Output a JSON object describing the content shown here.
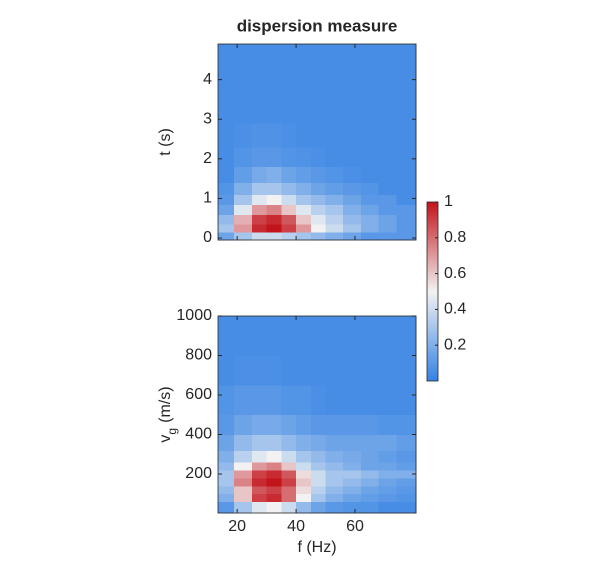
{
  "chart_data": [
    {
      "type": "heatmap",
      "title": "dispersion measure",
      "ylabel": {
        "text": "t (s)"
      },
      "xlim": [
        13.5,
        80.7
      ],
      "ylim": [
        -0.05,
        4.9
      ],
      "xticks": [
        20,
        40,
        60
      ],
      "yticks": [
        0,
        1,
        2,
        3,
        4
      ],
      "show_xtick_labels": false,
      "x_edges": [
        13.5,
        19,
        25,
        30,
        35,
        40,
        45,
        50,
        56,
        62,
        68,
        74,
        80.7
      ],
      "y_edges": [
        -0.05,
        0.15,
        0.35,
        0.6,
        0.85,
        1.1,
        1.4,
        1.8,
        2.3,
        2.9,
        3.6,
        4.3,
        4.9
      ],
      "z": [
        [
          0.15,
          0.3,
          0.4,
          0.4,
          0.35,
          0.3,
          0.25,
          0.2,
          0.15,
          0.1,
          0.1,
          0.1
        ],
        [
          0.3,
          0.7,
          0.95,
          1,
          0.9,
          0.7,
          0.5,
          0.4,
          0.3,
          0.2,
          0.15,
          0.1
        ],
        [
          0.25,
          0.65,
          0.9,
          0.95,
          0.85,
          0.6,
          0.45,
          0.35,
          0.25,
          0.2,
          0.15,
          0.1
        ],
        [
          0.15,
          0.45,
          0.7,
          0.75,
          0.6,
          0.45,
          0.35,
          0.3,
          0.2,
          0.15,
          0.1,
          0.1
        ],
        [
          0.1,
          0.3,
          0.45,
          0.5,
          0.4,
          0.3,
          0.25,
          0.2,
          0.15,
          0.1,
          0.1,
          0.05
        ],
        [
          0.08,
          0.2,
          0.3,
          0.3,
          0.25,
          0.2,
          0.15,
          0.12,
          0.1,
          0.08,
          0.05,
          0.05
        ],
        [
          0.05,
          0.12,
          0.18,
          0.2,
          0.15,
          0.12,
          0.1,
          0.08,
          0.06,
          0.05,
          0.05,
          0.05
        ],
        [
          0.05,
          0.08,
          0.1,
          0.1,
          0.08,
          0.07,
          0.06,
          0.05,
          0.05,
          0.05,
          0.05,
          0.05
        ],
        [
          0.05,
          0.06,
          0.07,
          0.07,
          0.06,
          0.05,
          0.05,
          0.05,
          0.05,
          0.05,
          0.05,
          0.05
        ],
        [
          0.05,
          0.05,
          0.05,
          0.05,
          0.05,
          0.05,
          0.05,
          0.05,
          0.05,
          0.05,
          0.05,
          0.05
        ],
        [
          0.05,
          0.05,
          0.05,
          0.05,
          0.05,
          0.05,
          0.05,
          0.05,
          0.05,
          0.05,
          0.05,
          0.05
        ],
        [
          0.05,
          0.05,
          0.05,
          0.05,
          0.05,
          0.05,
          0.05,
          0.05,
          0.05,
          0.05,
          0.05,
          0.05
        ]
      ]
    },
    {
      "type": "heatmap",
      "xlabel": "f (Hz)",
      "ylabel": {
        "text": "v",
        "sub": "g",
        "rest": "(m/s)"
      },
      "xlim": [
        13.5,
        80.7
      ],
      "ylim": [
        2.5,
        1000
      ],
      "xticks": [
        20,
        40,
        60
      ],
      "yticks": [
        200,
        400,
        600,
        800,
        1000
      ],
      "show_xtick_labels": true,
      "x_edges": [
        13.5,
        19,
        25,
        30,
        35,
        40,
        45,
        50,
        56,
        62,
        68,
        74,
        80.7
      ],
      "y_edges": [
        2.5,
        60,
        100,
        140,
        180,
        220,
        260,
        320,
        400,
        500,
        650,
        800,
        1000
      ],
      "z": [
        [
          0.1,
          0.3,
          0.45,
          0.5,
          0.4,
          0.25,
          0.15,
          0.1,
          0.08,
          0.08,
          0.05,
          0.05
        ],
        [
          0.2,
          0.6,
          0.9,
          0.95,
          0.8,
          0.5,
          0.3,
          0.2,
          0.15,
          0.12,
          0.1,
          0.08
        ],
        [
          0.25,
          0.6,
          0.85,
          0.9,
          0.8,
          0.55,
          0.35,
          0.25,
          0.2,
          0.15,
          0.12,
          0.1
        ],
        [
          0.3,
          0.75,
          0.95,
          1,
          0.9,
          0.6,
          0.4,
          0.3,
          0.25,
          0.2,
          0.15,
          0.12
        ],
        [
          0.3,
          0.7,
          0.9,
          0.95,
          0.85,
          0.55,
          0.4,
          0.3,
          0.3,
          0.25,
          0.2,
          0.2
        ],
        [
          0.25,
          0.5,
          0.7,
          0.75,
          0.6,
          0.4,
          0.3,
          0.25,
          0.2,
          0.15,
          0.15,
          0.12
        ],
        [
          0.2,
          0.35,
          0.45,
          0.5,
          0.4,
          0.3,
          0.25,
          0.2,
          0.18,
          0.15,
          0.12,
          0.1
        ],
        [
          0.15,
          0.25,
          0.3,
          0.3,
          0.25,
          0.2,
          0.18,
          0.15,
          0.15,
          0.15,
          0.15,
          0.12
        ],
        [
          0.1,
          0.15,
          0.18,
          0.18,
          0.15,
          0.12,
          0.1,
          0.1,
          0.1,
          0.1,
          0.08,
          0.08
        ],
        [
          0.08,
          0.1,
          0.1,
          0.1,
          0.08,
          0.08,
          0.06,
          0.05,
          0.05,
          0.05,
          0.05,
          0.05
        ],
        [
          0.05,
          0.06,
          0.06,
          0.06,
          0.05,
          0.05,
          0.05,
          0.05,
          0.05,
          0.05,
          0.05,
          0.05
        ],
        [
          0.05,
          0.05,
          0.05,
          0.05,
          0.05,
          0.05,
          0.05,
          0.05,
          0.05,
          0.05,
          0.05,
          0.05
        ]
      ]
    }
  ],
  "colorbar": {
    "clim": [
      0,
      1
    ],
    "ticks": [
      0.2,
      0.4,
      0.6,
      0.8,
      1
    ],
    "colors": [
      [
        0,
        "#3482e4"
      ],
      [
        0.5,
        "#f2f2f2"
      ],
      [
        1,
        "#c2141b"
      ]
    ]
  }
}
